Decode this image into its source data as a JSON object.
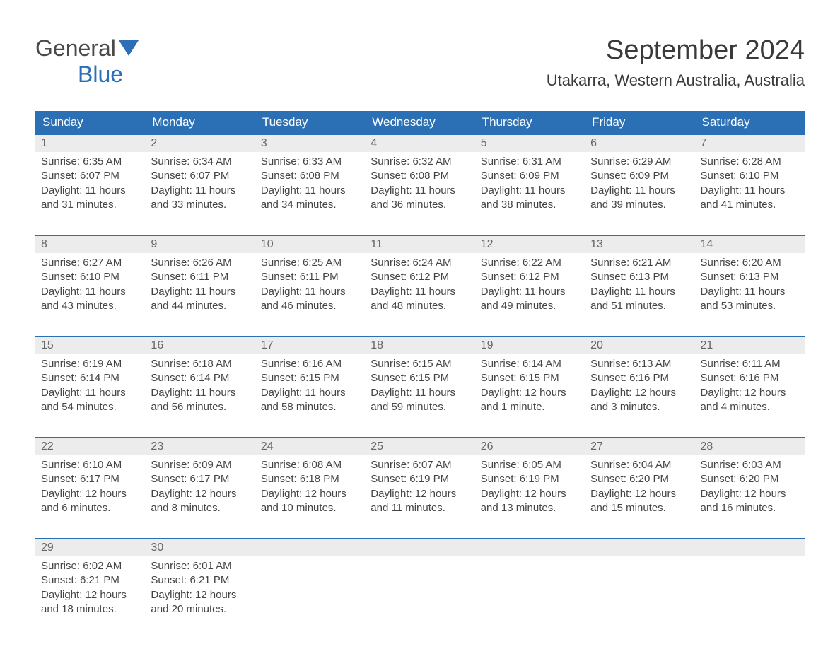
{
  "logo": {
    "part1": "General",
    "part2": "Blue"
  },
  "title": "September 2024",
  "location": "Utakarra, Western Australia, Australia",
  "colors": {
    "header_bg": "#2b6fb5",
    "header_text": "#ffffff",
    "daynum_bg": "#ececec",
    "border_top": "#2b6fb5",
    "body_text": "#444444",
    "logo_blue": "#2b6fb5",
    "background": "#ffffff"
  },
  "day_headers": [
    "Sunday",
    "Monday",
    "Tuesday",
    "Wednesday",
    "Thursday",
    "Friday",
    "Saturday"
  ],
  "weeks": [
    [
      {
        "n": "1",
        "sr": "6:35 AM",
        "ss": "6:07 PM",
        "dl": "11 hours and 31 minutes."
      },
      {
        "n": "2",
        "sr": "6:34 AM",
        "ss": "6:07 PM",
        "dl": "11 hours and 33 minutes."
      },
      {
        "n": "3",
        "sr": "6:33 AM",
        "ss": "6:08 PM",
        "dl": "11 hours and 34 minutes."
      },
      {
        "n": "4",
        "sr": "6:32 AM",
        "ss": "6:08 PM",
        "dl": "11 hours and 36 minutes."
      },
      {
        "n": "5",
        "sr": "6:31 AM",
        "ss": "6:09 PM",
        "dl": "11 hours and 38 minutes."
      },
      {
        "n": "6",
        "sr": "6:29 AM",
        "ss": "6:09 PM",
        "dl": "11 hours and 39 minutes."
      },
      {
        "n": "7",
        "sr": "6:28 AM",
        "ss": "6:10 PM",
        "dl": "11 hours and 41 minutes."
      }
    ],
    [
      {
        "n": "8",
        "sr": "6:27 AM",
        "ss": "6:10 PM",
        "dl": "11 hours and 43 minutes."
      },
      {
        "n": "9",
        "sr": "6:26 AM",
        "ss": "6:11 PM",
        "dl": "11 hours and 44 minutes."
      },
      {
        "n": "10",
        "sr": "6:25 AM",
        "ss": "6:11 PM",
        "dl": "11 hours and 46 minutes."
      },
      {
        "n": "11",
        "sr": "6:24 AM",
        "ss": "6:12 PM",
        "dl": "11 hours and 48 minutes."
      },
      {
        "n": "12",
        "sr": "6:22 AM",
        "ss": "6:12 PM",
        "dl": "11 hours and 49 minutes."
      },
      {
        "n": "13",
        "sr": "6:21 AM",
        "ss": "6:13 PM",
        "dl": "11 hours and 51 minutes."
      },
      {
        "n": "14",
        "sr": "6:20 AM",
        "ss": "6:13 PM",
        "dl": "11 hours and 53 minutes."
      }
    ],
    [
      {
        "n": "15",
        "sr": "6:19 AM",
        "ss": "6:14 PM",
        "dl": "11 hours and 54 minutes."
      },
      {
        "n": "16",
        "sr": "6:18 AM",
        "ss": "6:14 PM",
        "dl": "11 hours and 56 minutes."
      },
      {
        "n": "17",
        "sr": "6:16 AM",
        "ss": "6:15 PM",
        "dl": "11 hours and 58 minutes."
      },
      {
        "n": "18",
        "sr": "6:15 AM",
        "ss": "6:15 PM",
        "dl": "11 hours and 59 minutes."
      },
      {
        "n": "19",
        "sr": "6:14 AM",
        "ss": "6:15 PM",
        "dl": "12 hours and 1 minute."
      },
      {
        "n": "20",
        "sr": "6:13 AM",
        "ss": "6:16 PM",
        "dl": "12 hours and 3 minutes."
      },
      {
        "n": "21",
        "sr": "6:11 AM",
        "ss": "6:16 PM",
        "dl": "12 hours and 4 minutes."
      }
    ],
    [
      {
        "n": "22",
        "sr": "6:10 AM",
        "ss": "6:17 PM",
        "dl": "12 hours and 6 minutes."
      },
      {
        "n": "23",
        "sr": "6:09 AM",
        "ss": "6:17 PM",
        "dl": "12 hours and 8 minutes."
      },
      {
        "n": "24",
        "sr": "6:08 AM",
        "ss": "6:18 PM",
        "dl": "12 hours and 10 minutes."
      },
      {
        "n": "25",
        "sr": "6:07 AM",
        "ss": "6:19 PM",
        "dl": "12 hours and 11 minutes."
      },
      {
        "n": "26",
        "sr": "6:05 AM",
        "ss": "6:19 PM",
        "dl": "12 hours and 13 minutes."
      },
      {
        "n": "27",
        "sr": "6:04 AM",
        "ss": "6:20 PM",
        "dl": "12 hours and 15 minutes."
      },
      {
        "n": "28",
        "sr": "6:03 AM",
        "ss": "6:20 PM",
        "dl": "12 hours and 16 minutes."
      }
    ],
    [
      {
        "n": "29",
        "sr": "6:02 AM",
        "ss": "6:21 PM",
        "dl": "12 hours and 18 minutes."
      },
      {
        "n": "30",
        "sr": "6:01 AM",
        "ss": "6:21 PM",
        "dl": "12 hours and 20 minutes."
      },
      null,
      null,
      null,
      null,
      null
    ]
  ],
  "labels": {
    "sunrise": "Sunrise: ",
    "sunset": "Sunset: ",
    "daylight": "Daylight: "
  }
}
